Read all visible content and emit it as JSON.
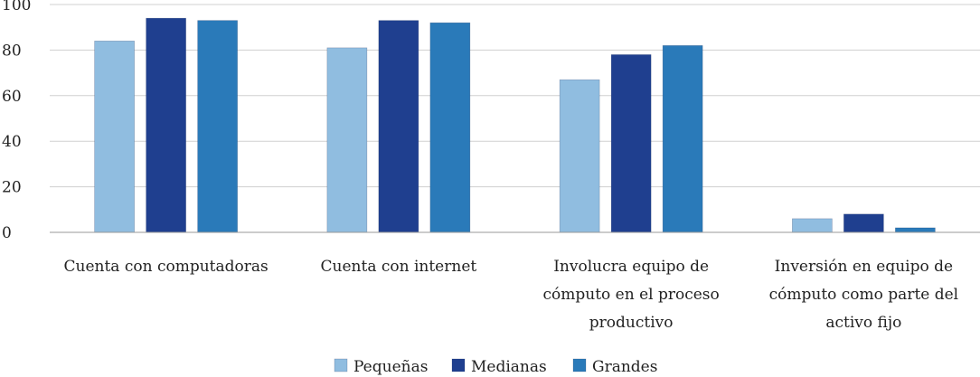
{
  "chart_data": {
    "type": "bar",
    "categories": [
      [
        "Cuenta con computadoras"
      ],
      [
        "Cuenta con internet"
      ],
      [
        "Involucra equipo de",
        "cómputo en el proceso",
        "productivo"
      ],
      [
        "Inversión en equipo de",
        "cómputo como parte del",
        "activo fijo"
      ]
    ],
    "series": [
      {
        "name": "Pequeñas",
        "color": "#90bde0",
        "values": [
          84,
          81,
          67,
          6
        ]
      },
      {
        "name": "Medianas",
        "color": "#1f3f8f",
        "values": [
          94,
          93,
          78,
          8
        ]
      },
      {
        "name": "Grandes",
        "color": "#2a7ab9",
        "values": [
          93,
          92,
          82,
          2
        ]
      }
    ],
    "y_ticks": [
      "0",
      "20",
      "40",
      "60",
      "80",
      "100"
    ],
    "ylim": [
      0,
      100
    ],
    "grid": true,
    "legend_position": "bottom-center"
  }
}
